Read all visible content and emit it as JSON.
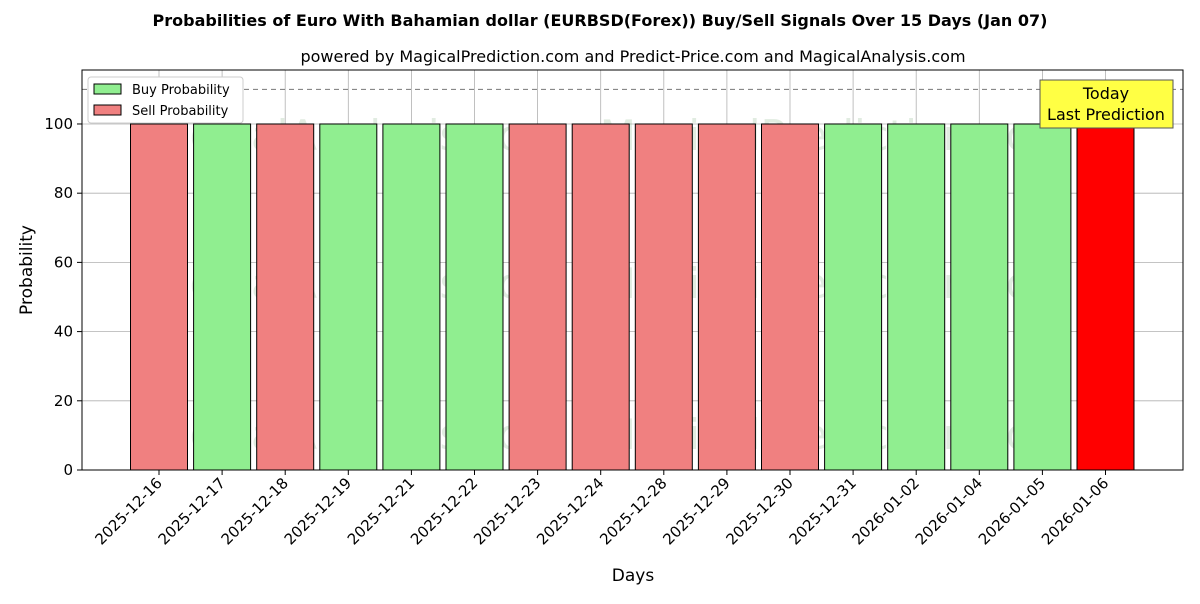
{
  "chart_data": {
    "type": "bar",
    "title": "Probabilities of Euro With Bahamian dollar (EURBSD(Forex)) Buy/Sell Signals Over 15 Days (Jan 07)",
    "subtitle": "powered by MagicalPrediction.com and Predict-Price.com and MagicalAnalysis.com",
    "xlabel": "Days",
    "ylabel": "Probability",
    "ylim": [
      0,
      115.6
    ],
    "yticks": [
      0,
      20,
      40,
      60,
      80,
      100
    ],
    "grid": true,
    "legend_placement": "top-left",
    "legend": [
      "Buy Probability",
      "Sell Probability"
    ],
    "reference_line": 110,
    "annotation": [
      "Today",
      "Last Prediction"
    ],
    "watermarks": [
      "MagicalAnalysis.com",
      "MagicalPrediction.com"
    ],
    "categories": [
      "2025-12-16",
      "2025-12-17",
      "2025-12-18",
      "2025-12-19",
      "2025-12-21",
      "2025-12-22",
      "2025-12-23",
      "2025-12-24",
      "2025-12-28",
      "2025-12-29",
      "2025-12-30",
      "2025-12-31",
      "2026-01-02",
      "2026-01-04",
      "2026-01-05",
      "2026-01-06"
    ],
    "values": [
      100,
      100,
      100,
      100,
      100,
      100,
      100,
      100,
      100,
      100,
      100,
      100,
      100,
      100,
      100,
      100
    ],
    "signals": [
      "sell",
      "buy",
      "sell",
      "buy",
      "buy",
      "buy",
      "sell",
      "sell",
      "sell",
      "sell",
      "sell",
      "buy",
      "buy",
      "buy",
      "buy",
      "sell"
    ],
    "colors": {
      "buy": "#90ee90",
      "sell": "#f08080",
      "today": "#ff0000",
      "annotation_bg": "#ffff44"
    }
  }
}
